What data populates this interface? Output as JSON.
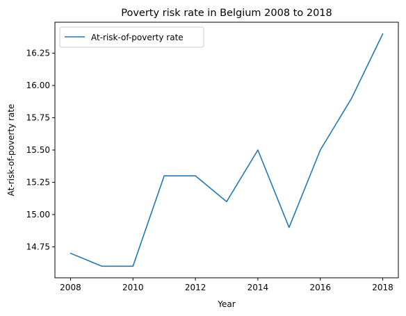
{
  "chart_data": {
    "type": "line",
    "title": "Poverty risk rate in Belgium 2008 to 2018",
    "xlabel": "Year",
    "ylabel": "At-risk-of-poverty rate",
    "x": [
      2008,
      2009,
      2010,
      2011,
      2012,
      2013,
      2014,
      2015,
      2016,
      2017,
      2018
    ],
    "series": [
      {
        "name": "At-risk-of-poverty rate",
        "color": "#1f77b4",
        "values": [
          14.7,
          14.6,
          14.6,
          15.3,
          15.3,
          15.1,
          15.5,
          14.9,
          15.5,
          15.9,
          16.4
        ]
      }
    ],
    "xlim": [
      2007.5,
      2018.5
    ],
    "ylim": [
      14.51,
      16.49
    ],
    "xticks": [
      2008,
      2010,
      2012,
      2014,
      2016,
      2018
    ],
    "xtick_labels": [
      "2008",
      "2010",
      "2012",
      "2014",
      "2016",
      "2018"
    ],
    "yticks": [
      14.75,
      15.0,
      15.25,
      15.5,
      15.75,
      16.0,
      16.25
    ],
    "ytick_labels": [
      "14.75",
      "15.00",
      "15.25",
      "15.50",
      "15.75",
      "16.00",
      "16.25"
    ],
    "grid": false,
    "legend_position": "upper-left"
  }
}
